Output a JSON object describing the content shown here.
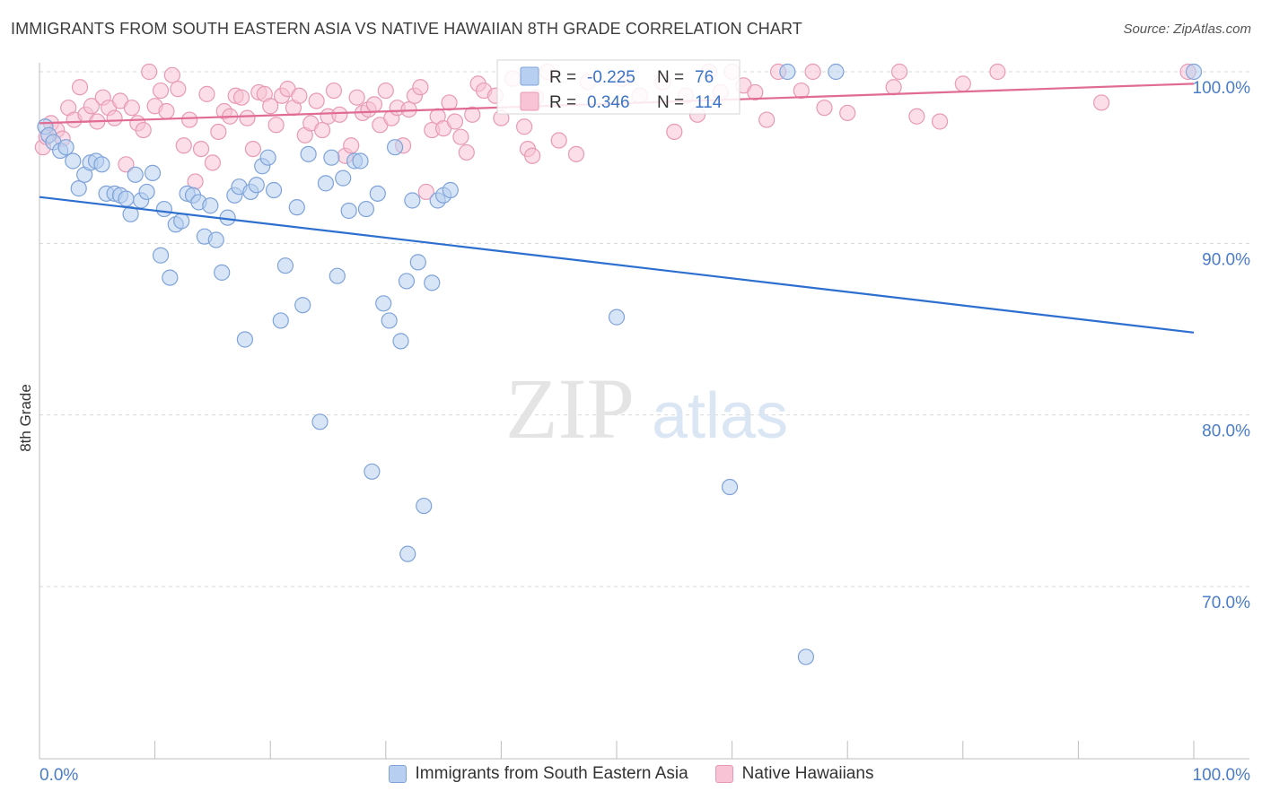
{
  "header": {
    "title": "IMMIGRANTS FROM SOUTH EASTERN ASIA VS NATIVE HAWAIIAN 8TH GRADE CORRELATION CHART",
    "source": "Source: ZipAtlas.com"
  },
  "watermark": {
    "zip": "ZIP",
    "atlas": "atlas"
  },
  "stats": {
    "r_label": "R =",
    "n_label": "N =",
    "blue": {
      "r": "-0.225",
      "n": "76"
    },
    "pink": {
      "r": "0.346",
      "n": "114"
    }
  },
  "legend": {
    "blue_label": "Immigrants from South Eastern Asia",
    "pink_label": "Native Hawaiians"
  },
  "colors": {
    "blue_fill": "#b7cff0",
    "blue_stroke": "#7fa3d8",
    "blue_line": "#2d6fcf",
    "pink_fill": "#f8c3d4",
    "pink_stroke": "#e79ab5",
    "pink_line": "#e06b94",
    "tick_label": "#4a7cc9",
    "grid": "#d8d8d8"
  },
  "chart_data": {
    "type": "scatter",
    "title": "IMMIGRANTS FROM SOUTH EASTERN ASIA VS NATIVE HAWAIIAN 8TH GRADE CORRELATION CHART",
    "xlabel": "",
    "ylabel": "8th Grade",
    "xlim": [
      0,
      100
    ],
    "ylim": [
      60.5,
      101.5
    ],
    "x_tick_labels": [
      "0.0%",
      "100.0%"
    ],
    "y_ticks": [
      {
        "value": 100,
        "label": "100.0%"
      },
      {
        "value": 90,
        "label": "90.0%"
      },
      {
        "value": 80,
        "label": "80.0%"
      },
      {
        "value": 70,
        "label": "70.0%"
      }
    ],
    "grid": true,
    "legend_position": "bottom",
    "series": [
      {
        "name": "Immigrants from South Eastern Asia",
        "color": "blue",
        "trend": {
          "x": [
            0,
            100
          ],
          "y": [
            92.7,
            84.8
          ]
        },
        "points": [
          [
            0.5,
            96.8
          ],
          [
            0.8,
            96.3
          ],
          [
            1.2,
            95.9
          ],
          [
            1.8,
            95.4
          ],
          [
            2.3,
            95.6
          ],
          [
            2.9,
            94.8
          ],
          [
            3.4,
            93.2
          ],
          [
            3.9,
            94.0
          ],
          [
            4.4,
            94.7
          ],
          [
            4.9,
            94.8
          ],
          [
            5.4,
            94.6
          ],
          [
            5.8,
            92.9
          ],
          [
            6.5,
            92.9
          ],
          [
            7.0,
            92.8
          ],
          [
            7.5,
            92.6
          ],
          [
            7.9,
            91.7
          ],
          [
            8.3,
            94.0
          ],
          [
            8.8,
            92.5
          ],
          [
            9.3,
            93.0
          ],
          [
            9.8,
            94.1
          ],
          [
            10.5,
            89.3
          ],
          [
            10.8,
            92.0
          ],
          [
            11.3,
            88.0
          ],
          [
            11.8,
            91.1
          ],
          [
            12.3,
            91.3
          ],
          [
            12.8,
            92.9
          ],
          [
            13.3,
            92.8
          ],
          [
            13.8,
            92.4
          ],
          [
            14.3,
            90.4
          ],
          [
            14.8,
            92.2
          ],
          [
            15.3,
            90.2
          ],
          [
            15.8,
            88.3
          ],
          [
            16.3,
            91.5
          ],
          [
            16.9,
            92.8
          ],
          [
            17.3,
            93.3
          ],
          [
            17.8,
            84.4
          ],
          [
            18.3,
            93.0
          ],
          [
            18.8,
            93.4
          ],
          [
            19.3,
            94.5
          ],
          [
            19.8,
            95.0
          ],
          [
            20.3,
            93.1
          ],
          [
            20.9,
            85.5
          ],
          [
            21.3,
            88.7
          ],
          [
            22.3,
            92.1
          ],
          [
            22.8,
            86.4
          ],
          [
            23.3,
            95.2
          ],
          [
            24.3,
            79.6
          ],
          [
            24.8,
            93.5
          ],
          [
            25.3,
            95.0
          ],
          [
            25.8,
            88.1
          ],
          [
            26.3,
            93.8
          ],
          [
            26.8,
            91.9
          ],
          [
            27.3,
            94.8
          ],
          [
            27.8,
            94.8
          ],
          [
            28.3,
            92.0
          ],
          [
            28.8,
            76.7
          ],
          [
            29.3,
            92.9
          ],
          [
            29.8,
            86.5
          ],
          [
            30.3,
            85.5
          ],
          [
            30.8,
            95.6
          ],
          [
            31.3,
            84.3
          ],
          [
            31.8,
            87.8
          ],
          [
            32.3,
            92.5
          ],
          [
            32.8,
            88.9
          ],
          [
            33.3,
            74.7
          ],
          [
            34.0,
            87.7
          ],
          [
            34.5,
            92.5
          ],
          [
            35.0,
            92.8
          ],
          [
            35.6,
            93.1
          ],
          [
            50.0,
            85.7
          ],
          [
            59.8,
            75.8
          ],
          [
            64.8,
            100.0
          ],
          [
            66.4,
            65.9
          ],
          [
            69.0,
            100.0
          ],
          [
            100.0,
            100.0
          ],
          [
            31.9,
            71.9
          ]
        ]
      },
      {
        "name": "Native Hawaiians",
        "color": "pink",
        "trend": {
          "x": [
            0,
            100
          ],
          "y": [
            97.0,
            99.3
          ]
        },
        "points": [
          [
            0.3,
            95.6
          ],
          [
            0.6,
            96.2
          ],
          [
            1.0,
            97.0
          ],
          [
            1.5,
            96.6
          ],
          [
            2.0,
            96.1
          ],
          [
            2.5,
            97.9
          ],
          [
            3.0,
            97.2
          ],
          [
            3.5,
            99.1
          ],
          [
            4.0,
            97.5
          ],
          [
            4.5,
            98.0
          ],
          [
            5.0,
            97.1
          ],
          [
            5.5,
            98.5
          ],
          [
            6.0,
            97.9
          ],
          [
            6.5,
            97.3
          ],
          [
            7.0,
            98.3
          ],
          [
            7.5,
            94.6
          ],
          [
            8.0,
            97.9
          ],
          [
            8.5,
            97.0
          ],
          [
            9.0,
            96.6
          ],
          [
            9.5,
            100.0
          ],
          [
            10.0,
            98.0
          ],
          [
            10.5,
            98.9
          ],
          [
            11.0,
            97.7
          ],
          [
            11.5,
            99.8
          ],
          [
            12.0,
            99.0
          ],
          [
            12.5,
            95.7
          ],
          [
            13.0,
            97.2
          ],
          [
            13.5,
            93.6
          ],
          [
            14.0,
            95.5
          ],
          [
            14.5,
            98.7
          ],
          [
            15.0,
            94.7
          ],
          [
            15.5,
            96.5
          ],
          [
            16.0,
            97.7
          ],
          [
            16.5,
            97.4
          ],
          [
            17.0,
            98.6
          ],
          [
            17.5,
            98.5
          ],
          [
            18.0,
            97.3
          ],
          [
            18.5,
            95.5
          ],
          [
            19.0,
            98.8
          ],
          [
            19.5,
            98.7
          ],
          [
            20.0,
            98.0
          ],
          [
            20.5,
            96.9
          ],
          [
            21.0,
            98.6
          ],
          [
            21.5,
            99.0
          ],
          [
            22.0,
            97.9
          ],
          [
            22.5,
            98.6
          ],
          [
            23.0,
            96.3
          ],
          [
            23.5,
            97.0
          ],
          [
            24.0,
            98.3
          ],
          [
            24.5,
            96.6
          ],
          [
            25.0,
            97.4
          ],
          [
            25.5,
            98.9
          ],
          [
            26.0,
            97.5
          ],
          [
            26.5,
            95.1
          ],
          [
            27.0,
            95.7
          ],
          [
            27.5,
            98.5
          ],
          [
            28.0,
            97.6
          ],
          [
            28.5,
            97.8
          ],
          [
            29.0,
            98.1
          ],
          [
            29.5,
            96.9
          ],
          [
            30.0,
            98.9
          ],
          [
            30.5,
            97.3
          ],
          [
            31.0,
            97.9
          ],
          [
            31.5,
            95.7
          ],
          [
            32.0,
            97.8
          ],
          [
            32.5,
            98.6
          ],
          [
            33.0,
            99.1
          ],
          [
            33.5,
            93.0
          ],
          [
            34.0,
            96.6
          ],
          [
            34.5,
            97.4
          ],
          [
            35.0,
            96.7
          ],
          [
            35.5,
            98.2
          ],
          [
            36.0,
            97.1
          ],
          [
            36.5,
            96.2
          ],
          [
            37.0,
            95.3
          ],
          [
            37.5,
            97.5
          ],
          [
            38.0,
            99.3
          ],
          [
            38.5,
            98.9
          ],
          [
            39.5,
            98.6
          ],
          [
            40.0,
            97.3
          ],
          [
            41.0,
            99.6
          ],
          [
            42.0,
            96.8
          ],
          [
            42.3,
            95.5
          ],
          [
            42.7,
            95.1
          ],
          [
            43.0,
            98.5
          ],
          [
            44.0,
            100.0
          ],
          [
            45.0,
            96.0
          ],
          [
            46.5,
            95.2
          ],
          [
            47.5,
            99.4
          ],
          [
            50.5,
            99.6
          ],
          [
            52.0,
            98.6
          ],
          [
            54.0,
            99.4
          ],
          [
            55.0,
            96.5
          ],
          [
            56.0,
            98.6
          ],
          [
            57.0,
            97.5
          ],
          [
            58.0,
            100.0
          ],
          [
            59.0,
            98.8
          ],
          [
            60.0,
            100.0
          ],
          [
            61.0,
            99.2
          ],
          [
            62.0,
            98.8
          ],
          [
            63.0,
            97.2
          ],
          [
            64.0,
            100.0
          ],
          [
            66.0,
            98.9
          ],
          [
            67.0,
            100.0
          ],
          [
            68.0,
            97.9
          ],
          [
            70.0,
            97.6
          ],
          [
            74.0,
            99.1
          ],
          [
            74.5,
            100.0
          ],
          [
            76.0,
            97.4
          ],
          [
            80.0,
            99.3
          ],
          [
            78.0,
            97.1
          ],
          [
            83.0,
            100.0
          ],
          [
            92.0,
            98.2
          ],
          [
            99.5,
            100.0
          ]
        ]
      }
    ]
  }
}
